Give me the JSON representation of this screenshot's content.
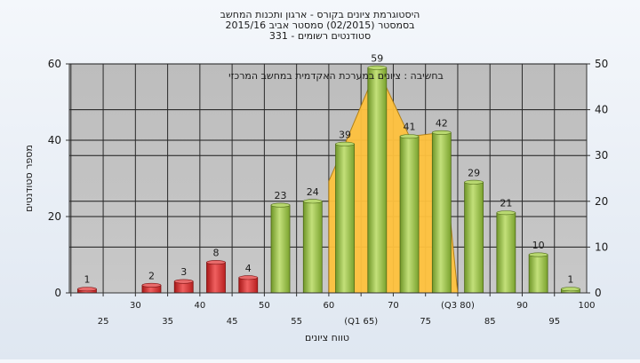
{
  "chart_data": {
    "type": "bar",
    "title_lines": [
      "היסטוגרמת ציונים בקורס - ארגון ותכנות המחשב",
      "בסמסטר  (02/2015)  סמסטר אביב 2015/16",
      "331 - סטודנטים רשומים"
    ],
    "annotation": "בחשיבה : ציונים במערכת האקדמית במחשב המרכזי",
    "xlabel": "טווח ציונים",
    "ylabel": "מספר סטודנטים",
    "ylim": [
      0,
      60
    ],
    "yticks": [
      0,
      20,
      40,
      60
    ],
    "ylim_right": [
      0,
      50
    ],
    "yticks_right": [
      0,
      10,
      20,
      30,
      40,
      50
    ],
    "categories": [
      "25",
      "30",
      "35",
      "40",
      "45",
      "50",
      "55",
      "60",
      "65",
      "70",
      "75",
      "80",
      "85",
      "90",
      "95",
      "100"
    ],
    "tick_labels": [
      "25",
      "30",
      "35",
      "40",
      "45",
      "50",
      "55",
      "60",
      "(Q1 65)",
      "70",
      "75",
      "(Q3 80)",
      "85",
      "90",
      "95",
      "100"
    ],
    "values": [
      1,
      0,
      2,
      3,
      8,
      4,
      23,
      24,
      39,
      59,
      41,
      42,
      29,
      21,
      10,
      1
    ],
    "value_labels": [
      "1",
      "",
      "2",
      "3",
      "8",
      "4",
      "23",
      "24",
      "39",
      "59",
      "41",
      "42",
      "29",
      "21",
      "10",
      "1"
    ],
    "fail_threshold_category": "50",
    "interquartile_area": {
      "categories": [
        "65",
        "70",
        "75",
        "80"
      ],
      "values": [
        39,
        59,
        41,
        42
      ]
    },
    "colors": {
      "fail_bar": "#d42a2a",
      "pass_bar": "#8cb43c",
      "iqr_fill": "#ffc23e",
      "plot_bg": "#c0c0c0",
      "grid": "#000000"
    },
    "grid": true,
    "legend": "none"
  }
}
